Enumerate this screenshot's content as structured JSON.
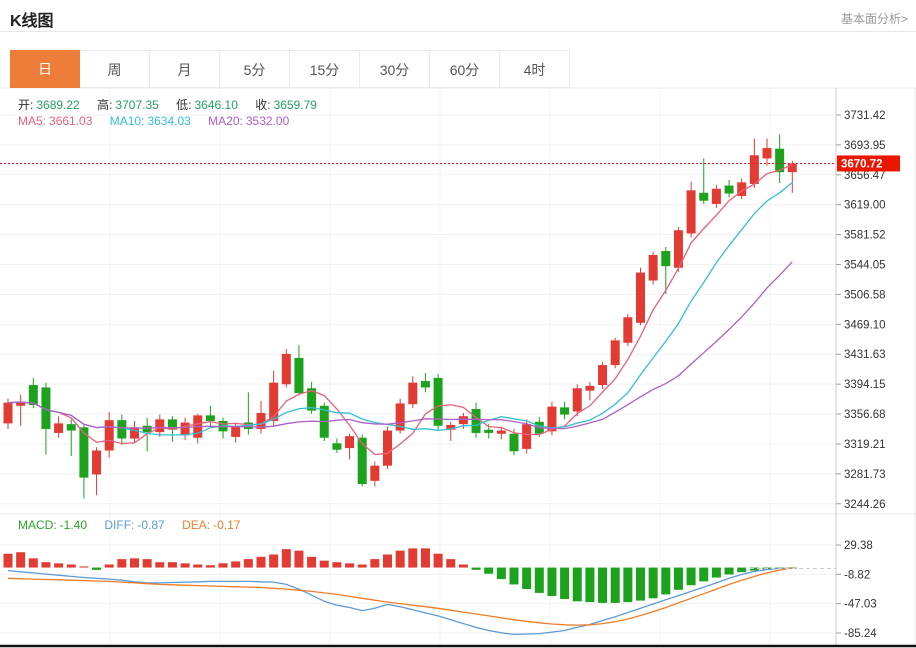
{
  "header": {
    "title": "K线图",
    "link_label": "基本面分析>"
  },
  "tabs": {
    "items": [
      "日",
      "周",
      "月",
      "5分",
      "15分",
      "30分",
      "60分",
      "4时"
    ],
    "selected": "日"
  },
  "ohlc_info": {
    "open_label": "开:",
    "open": "3689.22",
    "high_label": "高:",
    "high": "3707.35",
    "low_label": "低:",
    "low": "3646.10",
    "close_label": "收:",
    "close": "3659.79"
  },
  "ma_info": {
    "ma5_label": "MA5:",
    "ma5": "3661.03",
    "ma10_label": "MA10:",
    "ma10": "3634.03",
    "ma20_label": "MA20:",
    "ma20": "3532.00"
  },
  "macd_info": {
    "macd_label": "MACD:",
    "macd": "-1.40",
    "diff_label": "DIFF:",
    "diff": "-0.87",
    "dea_label": "DEA:",
    "dea": "-0.17"
  },
  "price_marker": "3670.72",
  "colors": {
    "accent_orange": "#ef7d3a",
    "up_red": "#e23b33",
    "down_green": "#1ca21c",
    "ma5_pink": "#e8617c",
    "ma10_cyan": "#36bfd4",
    "ma20_purple": "#b05fc6",
    "value_green": "#23a15d",
    "macd_green": "#2aa42a",
    "diff_blue": "#5b9bd5",
    "dea_orange": "#ef7d28",
    "price_box_red": "#ec1500",
    "grid": "#f1f1f1",
    "axis_text": "#333333"
  },
  "chart_data": [
    {
      "type": "candlestick",
      "interval": "日",
      "current_price": 3670.72,
      "y_ticks": [
        3731.42,
        3693.95,
        3656.47,
        3619.0,
        3581.52,
        3544.05,
        3506.58,
        3469.1,
        3431.63,
        3394.15,
        3356.68,
        3319.21,
        3281.73,
        3244.26
      ],
      "ylim": [
        3237,
        3756
      ],
      "ma_periods": [
        5,
        10,
        20
      ],
      "ohlc": [
        [
          3345,
          3376,
          3338,
          3371
        ],
        [
          3367,
          3381,
          3342,
          3372
        ],
        [
          3393,
          3402,
          3364,
          3368
        ],
        [
          3390,
          3396,
          3306,
          3338
        ],
        [
          3333,
          3354,
          3327,
          3345
        ],
        [
          3344,
          3350,
          3304,
          3336
        ],
        [
          3340,
          3344,
          3251,
          3277
        ],
        [
          3281,
          3315,
          3255,
          3311
        ],
        [
          3311,
          3359,
          3302,
          3349
        ],
        [
          3349,
          3356,
          3318,
          3326
        ],
        [
          3326,
          3348,
          3320,
          3340
        ],
        [
          3342,
          3352,
          3310,
          3334
        ],
        [
          3334,
          3356,
          3328,
          3350
        ],
        [
          3350,
          3354,
          3322,
          3337
        ],
        [
          3330,
          3352,
          3324,
          3346
        ],
        [
          3327,
          3357,
          3320,
          3355
        ],
        [
          3355,
          3367,
          3341,
          3348
        ],
        [
          3348,
          3352,
          3326,
          3335
        ],
        [
          3328,
          3346,
          3321,
          3341
        ],
        [
          3346,
          3384,
          3331,
          3338
        ],
        [
          3338,
          3373,
          3332,
          3358
        ],
        [
          3348,
          3411,
          3342,
          3396
        ],
        [
          3394,
          3438,
          3390,
          3432
        ],
        [
          3427,
          3443,
          3380,
          3383
        ],
        [
          3389,
          3397,
          3357,
          3361
        ],
        [
          3367,
          3371,
          3323,
          3327
        ],
        [
          3320,
          3326,
          3308,
          3312
        ],
        [
          3314,
          3332,
          3300,
          3329
        ],
        [
          3327,
          3331,
          3266,
          3269
        ],
        [
          3273,
          3297,
          3266,
          3292
        ],
        [
          3292,
          3341,
          3288,
          3336
        ],
        [
          3336,
          3376,
          3332,
          3370
        ],
        [
          3369,
          3404,
          3364,
          3396
        ],
        [
          3398,
          3408,
          3384,
          3390
        ],
        [
          3402,
          3407,
          3336,
          3342
        ],
        [
          3337,
          3347,
          3323,
          3343
        ],
        [
          3344,
          3358,
          3338,
          3354
        ],
        [
          3363,
          3371,
          3327,
          3333
        ],
        [
          3337,
          3344,
          3326,
          3333
        ],
        [
          3332,
          3341,
          3325,
          3336
        ],
        [
          3332,
          3338,
          3305,
          3310
        ],
        [
          3313,
          3350,
          3307,
          3344
        ],
        [
          3347,
          3353,
          3328,
          3332
        ],
        [
          3335,
          3372,
          3330,
          3366
        ],
        [
          3365,
          3372,
          3350,
          3356
        ],
        [
          3360,
          3394,
          3354,
          3389
        ],
        [
          3386,
          3397,
          3374,
          3392
        ],
        [
          3393,
          3422,
          3388,
          3418
        ],
        [
          3418,
          3452,
          3414,
          3449
        ],
        [
          3446,
          3482,
          3442,
          3478
        ],
        [
          3471,
          3540,
          3468,
          3534
        ],
        [
          3524,
          3560,
          3519,
          3556
        ],
        [
          3561,
          3566,
          3507,
          3542
        ],
        [
          3540,
          3591,
          3535,
          3587
        ],
        [
          3583,
          3648,
          3578,
          3637
        ],
        [
          3634,
          3677,
          3620,
          3624
        ],
        [
          3620,
          3644,
          3615,
          3639
        ],
        [
          3643,
          3650,
          3628,
          3633
        ],
        [
          3630,
          3652,
          3626,
          3647
        ],
        [
          3645,
          3702,
          3640,
          3681
        ],
        [
          3677,
          3702,
          3668,
          3690
        ],
        [
          3689.22,
          3707.35,
          3646.1,
          3659.79
        ],
        [
          3659.79,
          3674,
          3634,
          3670.72
        ]
      ]
    },
    {
      "type": "bar",
      "name": "MACD",
      "y_ticks": [
        29.38,
        -8.82,
        -47.03,
        -85.24
      ],
      "ylim": [
        -102,
        63
      ],
      "hist": [
        18,
        20,
        12,
        7,
        5.5,
        4,
        1.5,
        -3,
        4,
        11,
        12,
        11,
        7,
        7,
        5.5,
        4,
        3,
        5.5,
        8,
        11,
        14,
        17,
        24,
        22,
        14,
        9,
        7,
        5.5,
        4,
        11,
        17,
        22,
        25,
        25,
        18,
        11,
        4,
        -3,
        -8,
        -15,
        -22,
        -28,
        -33,
        -37,
        -41,
        -44,
        -45,
        -46,
        -46,
        -45,
        -43,
        -40,
        -35,
        -29,
        -23,
        -18,
        -13,
        -9,
        -6,
        -4,
        -2.5,
        -1.8,
        -1.4
      ],
      "diff": [
        -4,
        -5.5,
        -7,
        -8.5,
        -10,
        -11.5,
        -13,
        -14,
        -15,
        -16.5,
        -18.5,
        -20,
        -20,
        -19.5,
        -19,
        -18.5,
        -18,
        -18,
        -18,
        -18,
        -18.5,
        -19,
        -22,
        -28,
        -36,
        -44,
        -49,
        -52,
        -56,
        -53,
        -48,
        -51,
        -55,
        -59,
        -63,
        -68,
        -73,
        -78,
        -82,
        -85,
        -87,
        -86.5,
        -86,
        -84,
        -82,
        -78,
        -74,
        -69,
        -64,
        -58.5,
        -53,
        -47.5,
        -42,
        -36.5,
        -31,
        -25.5,
        -20,
        -14,
        -9,
        -5,
        -2.5,
        -1.2,
        -0.87
      ],
      "dea": [
        -14,
        -14.5,
        -15,
        -15.5,
        -16,
        -16.5,
        -17,
        -17.5,
        -18,
        -19,
        -20,
        -21,
        -22,
        -22.5,
        -23,
        -23.5,
        -24,
        -24.5,
        -25,
        -25.5,
        -26,
        -27,
        -28,
        -29.5,
        -31,
        -33,
        -35,
        -37.5,
        -40,
        -42.5,
        -45,
        -47,
        -49,
        -51,
        -53,
        -55.5,
        -58,
        -60.5,
        -63,
        -65.5,
        -68,
        -70,
        -72,
        -73.5,
        -74.5,
        -75,
        -74.5,
        -73,
        -70.5,
        -67,
        -62.5,
        -57.5,
        -52,
        -46,
        -40,
        -34,
        -28,
        -22,
        -16.5,
        -11.5,
        -7,
        -3.5,
        -0.17
      ]
    }
  ]
}
